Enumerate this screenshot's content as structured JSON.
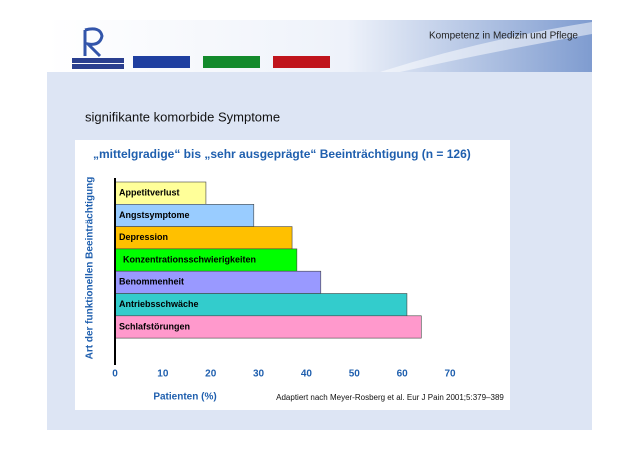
{
  "header": {
    "tagline": "Kompetenz in Medizin und Pflege"
  },
  "slide_title": "signifikante komorbide Symptome",
  "chart_data": {
    "type": "hbar",
    "title": "„mittelgradige“ bis „sehr ausgeprägte“ Beeinträchtigung (n = 126)",
    "y_label": "Art der funktionellen Beeinträchtigung",
    "x_label": "Patienten (%)",
    "source": "Adaptiert nach Meyer-Rosberg et al. Eur J Pain 2001;5:379–389",
    "categories": [
      "Appetitverlust",
      "Angstsymptome",
      "Depression",
      "Konzentrationsschwierigkeiten",
      "Benommenheit",
      "Antriebsschwäche",
      "Schlafstörungen"
    ],
    "values": [
      19,
      29,
      37,
      38,
      43,
      61,
      64
    ],
    "colors": [
      "#ffff99",
      "#99ccff",
      "#ffc000",
      "#00ff00",
      "#9999ff",
      "#33cccc",
      "#ff99cc"
    ],
    "xlim": [
      0,
      70
    ],
    "xticks": [
      0,
      10,
      20,
      30,
      40,
      50,
      60,
      70
    ]
  }
}
